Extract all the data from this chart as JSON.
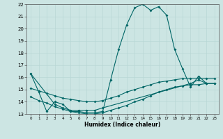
{
  "xlabel": "Humidex (Indice chaleur)",
  "xlim": [
    -0.5,
    23.5
  ],
  "ylim": [
    13,
    22
  ],
  "yticks": [
    13,
    14,
    15,
    16,
    17,
    18,
    19,
    20,
    21,
    22
  ],
  "xticks": [
    0,
    1,
    2,
    3,
    4,
    5,
    6,
    7,
    8,
    9,
    10,
    11,
    12,
    13,
    14,
    15,
    16,
    17,
    18,
    19,
    20,
    21,
    22,
    23
  ],
  "bg_color": "#cce5e3",
  "line_color": "#006666",
  "lines": [
    {
      "x": [
        0,
        1,
        2,
        3,
        4,
        5,
        6,
        7,
        8,
        9,
        10,
        11,
        12,
        13,
        14,
        15,
        16,
        17,
        18,
        19,
        20,
        21,
        22
      ],
      "y": [
        16.3,
        14.8,
        13.2,
        14.0,
        13.8,
        13.2,
        13.2,
        13.1,
        13.1,
        13.2,
        15.8,
        18.3,
        20.3,
        21.7,
        22.0,
        21.5,
        21.8,
        21.1,
        18.3,
        16.7,
        15.2,
        16.1,
        15.5
      ]
    },
    {
      "x": [
        0,
        1,
        2,
        3,
        4,
        5,
        6,
        7,
        8,
        9,
        10,
        11,
        12,
        13,
        14,
        15,
        16,
        17,
        18,
        19,
        20,
        21,
        22,
        23
      ],
      "y": [
        15.1,
        14.9,
        14.7,
        14.5,
        14.3,
        14.2,
        14.1,
        14.0,
        14.0,
        14.1,
        14.3,
        14.5,
        14.8,
        15.0,
        15.2,
        15.4,
        15.6,
        15.7,
        15.8,
        15.9,
        15.9,
        15.9,
        15.9,
        15.9
      ]
    },
    {
      "x": [
        0,
        1,
        2,
        3,
        4,
        5,
        6,
        7,
        8,
        9,
        10,
        11,
        12,
        13,
        14,
        15,
        16,
        17,
        18,
        19,
        20,
        21,
        22,
        23
      ],
      "y": [
        14.4,
        14.1,
        13.9,
        13.6,
        13.4,
        13.2,
        13.1,
        13.0,
        13.0,
        13.1,
        13.3,
        13.5,
        13.7,
        14.0,
        14.2,
        14.5,
        14.8,
        15.0,
        15.2,
        15.3,
        15.4,
        15.4,
        15.5,
        15.5
      ]
    },
    {
      "x": [
        0,
        3,
        4,
        5,
        6,
        7,
        8,
        9,
        20,
        21,
        22,
        23
      ],
      "y": [
        16.3,
        13.8,
        13.5,
        13.3,
        13.3,
        13.3,
        13.3,
        13.5,
        15.5,
        15.8,
        15.5,
        15.5
      ]
    }
  ]
}
